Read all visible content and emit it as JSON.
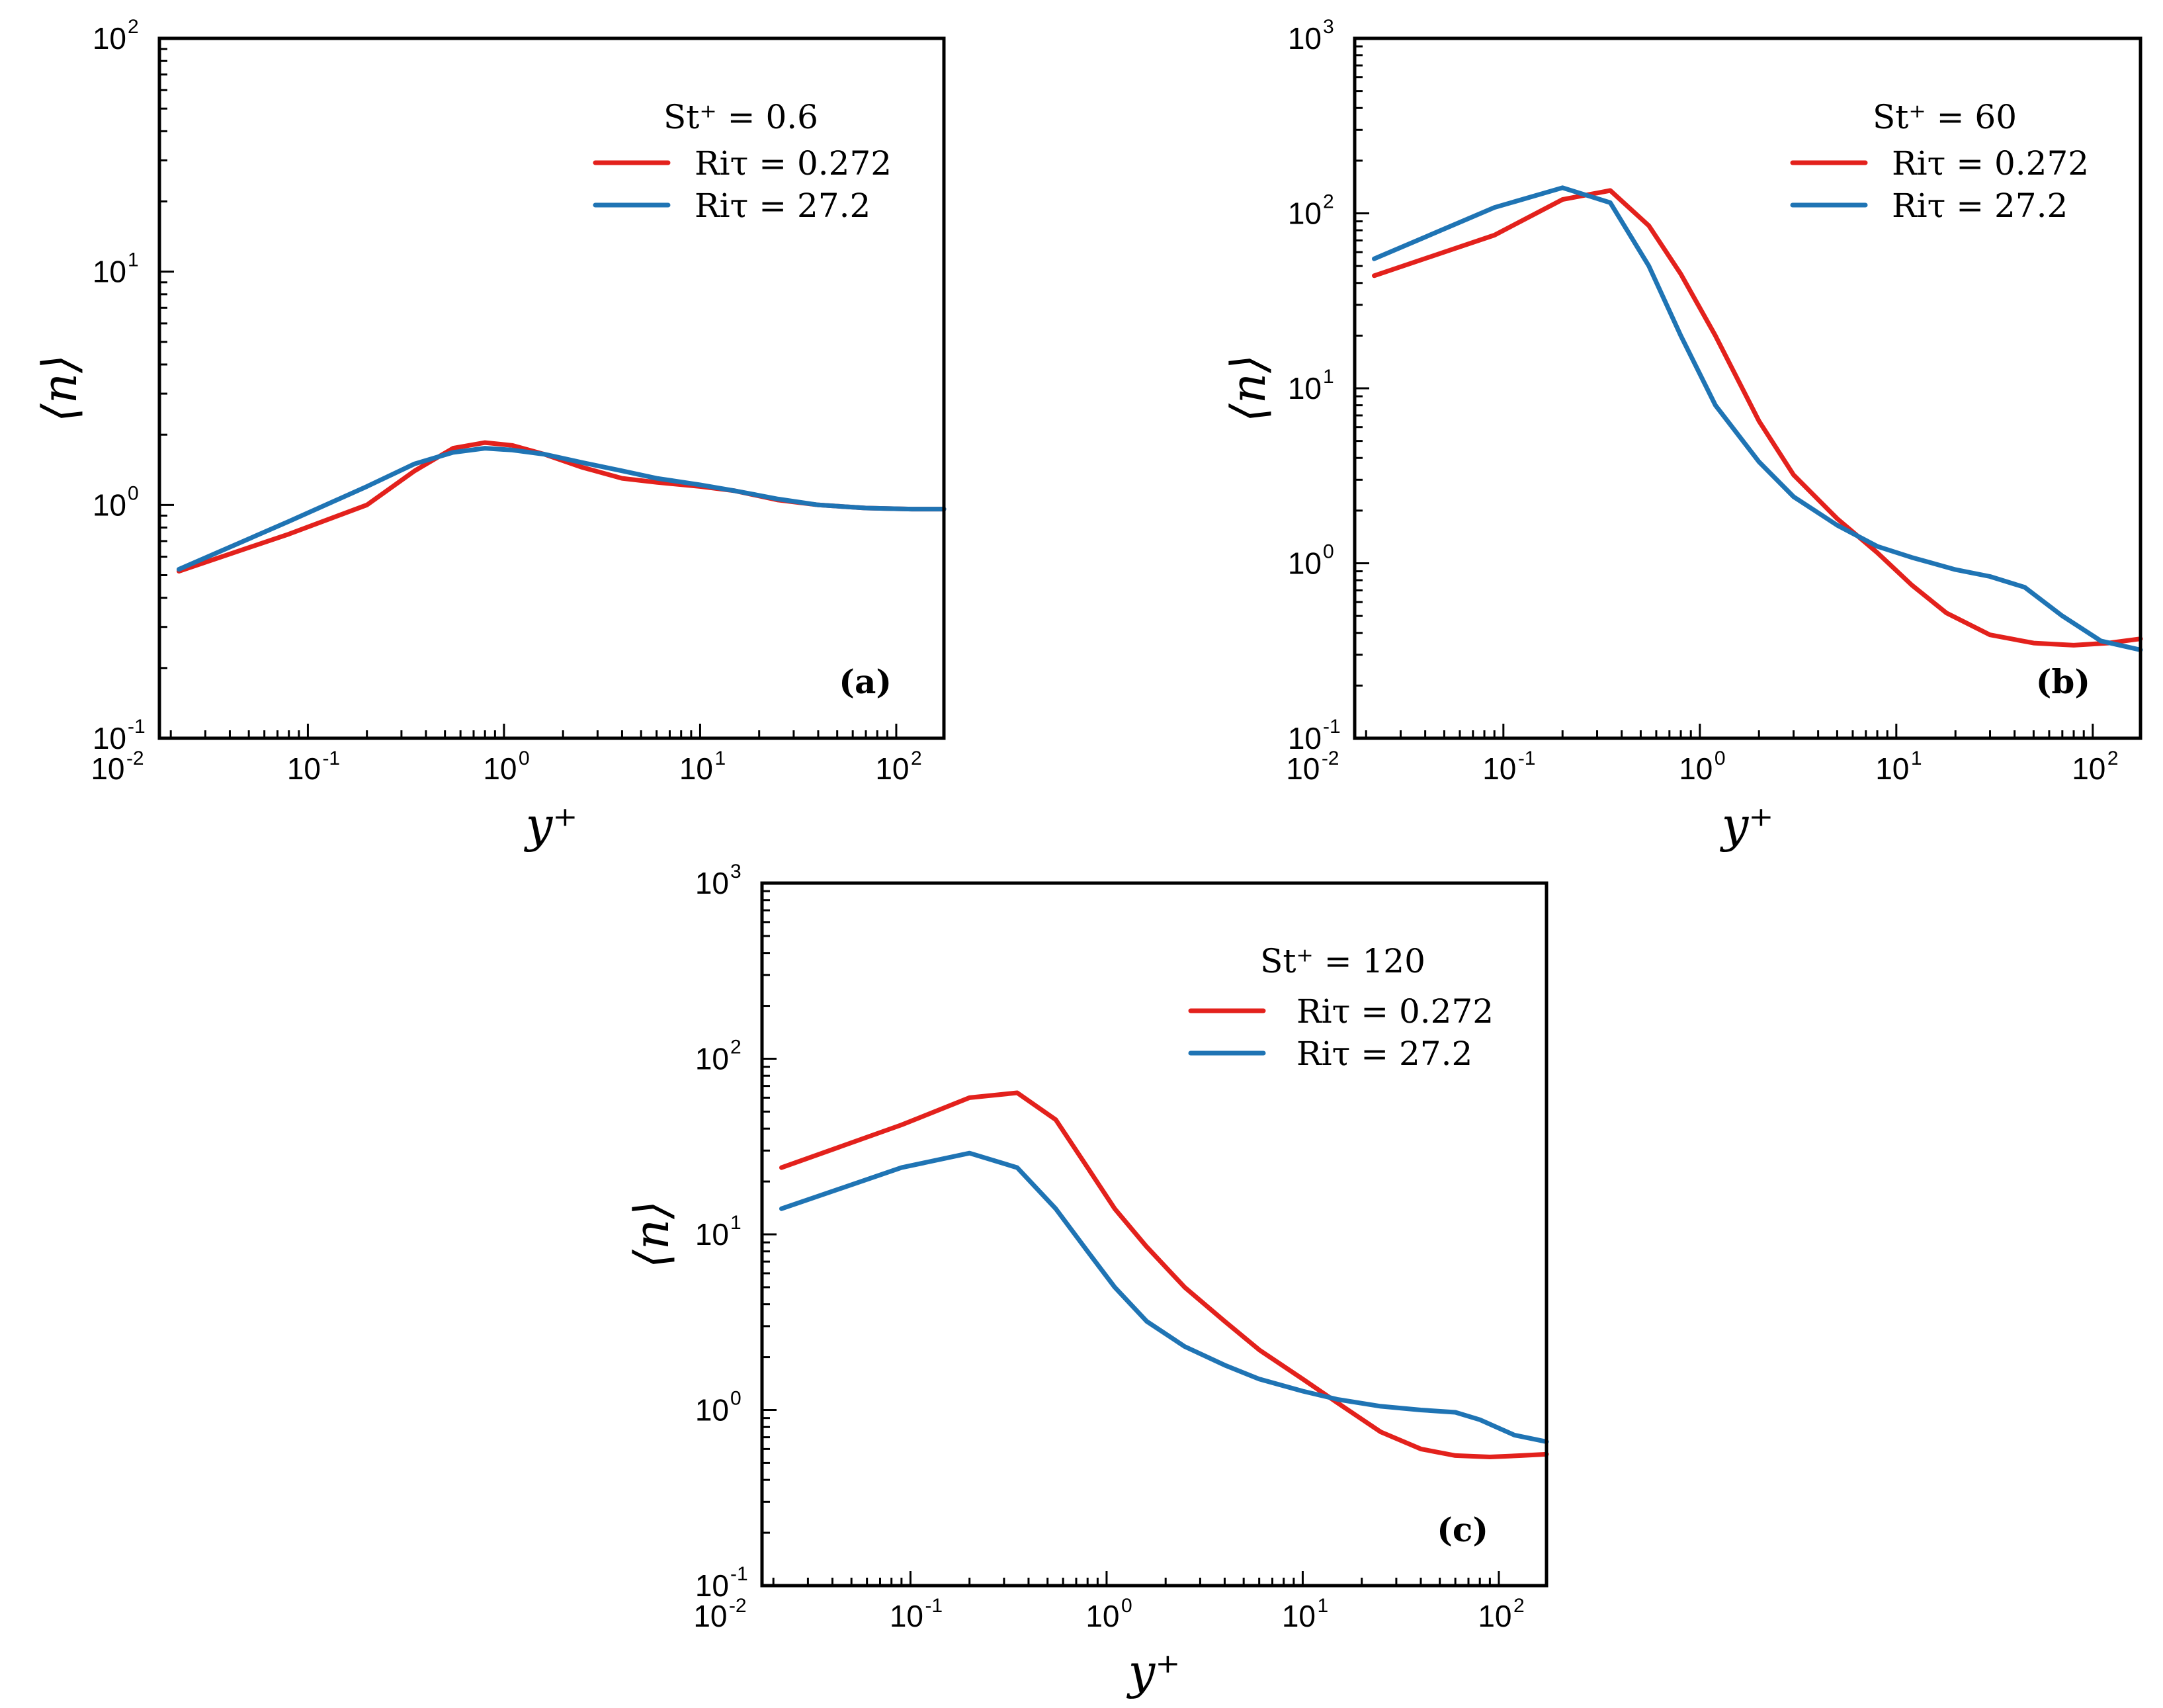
{
  "colors": {
    "red": "#e3211c",
    "blue": "#1f74b4"
  },
  "chart_data": [
    {
      "type": "line",
      "panel_label": "(a)",
      "xlabel": "y⁺",
      "ylabel": "⟨n⟩",
      "xscale": "log",
      "yscale": "log",
      "xlim": [
        0.0175,
        175
      ],
      "ylim": [
        0.1,
        100
      ],
      "xticks": [
        {
          "base": "10",
          "exp": "-2",
          "v": 0.01
        },
        {
          "base": "10",
          "exp": "-1",
          "v": 0.1
        },
        {
          "base": "10",
          "exp": "0",
          "v": 1
        },
        {
          "base": "10",
          "exp": "1",
          "v": 10
        },
        {
          "base": "10",
          "exp": "2",
          "v": 100
        }
      ],
      "yticks": [
        {
          "base": "10",
          "exp": "-1",
          "v": 0.1
        },
        {
          "base": "10",
          "exp": "0",
          "v": 1
        },
        {
          "base": "10",
          "exp": "1",
          "v": 10
        },
        {
          "base": "10",
          "exp": "2",
          "v": 100
        }
      ],
      "legend_title": "St⁺ = 0.6",
      "legend_position": "top-right",
      "series": [
        {
          "name": "Riτ = 0.272",
          "color": "#e3211c",
          "x": [
            0.022,
            0.08,
            0.2,
            0.35,
            0.55,
            0.8,
            1.1,
            1.6,
            2.5,
            4,
            6,
            10,
            15,
            25,
            40,
            70,
            120,
            175
          ],
          "y": [
            0.52,
            0.75,
            1.0,
            1.4,
            1.75,
            1.85,
            1.8,
            1.65,
            1.45,
            1.3,
            1.25,
            1.2,
            1.15,
            1.05,
            1.0,
            0.97,
            0.96,
            0.96
          ]
        },
        {
          "name": "Riτ = 27.2",
          "color": "#1f74b4",
          "x": [
            0.022,
            0.08,
            0.2,
            0.35,
            0.55,
            0.8,
            1.1,
            1.6,
            2.5,
            4,
            6,
            10,
            15,
            25,
            40,
            70,
            120,
            175
          ],
          "y": [
            0.53,
            0.85,
            1.2,
            1.5,
            1.68,
            1.75,
            1.72,
            1.65,
            1.52,
            1.4,
            1.3,
            1.22,
            1.15,
            1.06,
            1.0,
            0.97,
            0.96,
            0.96
          ]
        }
      ]
    },
    {
      "type": "line",
      "panel_label": "(b)",
      "xlabel": "y⁺",
      "ylabel": "⟨n⟩",
      "xscale": "log",
      "yscale": "log",
      "xlim": [
        0.0175,
        175
      ],
      "ylim": [
        0.1,
        1000
      ],
      "xticks": [
        {
          "base": "10",
          "exp": "-2",
          "v": 0.01
        },
        {
          "base": "10",
          "exp": "-1",
          "v": 0.1
        },
        {
          "base": "10",
          "exp": "0",
          "v": 1
        },
        {
          "base": "10",
          "exp": "1",
          "v": 10
        },
        {
          "base": "10",
          "exp": "2",
          "v": 100
        }
      ],
      "yticks": [
        {
          "base": "10",
          "exp": "-1",
          "v": 0.1
        },
        {
          "base": "10",
          "exp": "0",
          "v": 1
        },
        {
          "base": "10",
          "exp": "1",
          "v": 10
        },
        {
          "base": "10",
          "exp": "2",
          "v": 100
        },
        {
          "base": "10",
          "exp": "3",
          "v": 1000
        }
      ],
      "legend_title": "St⁺ = 60",
      "legend_position": "top-right",
      "series": [
        {
          "name": "Riτ = 0.272",
          "color": "#e3211c",
          "x": [
            0.022,
            0.09,
            0.2,
            0.35,
            0.55,
            0.8,
            1.2,
            2,
            3,
            5,
            8,
            12,
            18,
            30,
            50,
            80,
            120,
            175
          ],
          "y": [
            44,
            75,
            120,
            135,
            85,
            45,
            20,
            6.5,
            3.2,
            1.8,
            1.15,
            0.75,
            0.52,
            0.39,
            0.35,
            0.34,
            0.35,
            0.37
          ]
        },
        {
          "name": "Riτ = 27.2",
          "color": "#1f74b4",
          "x": [
            0.022,
            0.09,
            0.2,
            0.35,
            0.55,
            0.8,
            1.2,
            2,
            3,
            5,
            8,
            12,
            20,
            30,
            45,
            70,
            110,
            175
          ],
          "y": [
            55,
            108,
            140,
            115,
            50,
            20,
            8,
            3.8,
            2.4,
            1.65,
            1.25,
            1.08,
            0.92,
            0.84,
            0.73,
            0.5,
            0.36,
            0.32
          ]
        }
      ]
    },
    {
      "type": "line",
      "panel_label": "(c)",
      "xlabel": "y⁺",
      "ylabel": "⟨n⟩",
      "xscale": "log",
      "yscale": "log",
      "xlim": [
        0.0175,
        175
      ],
      "ylim": [
        0.1,
        1000
      ],
      "xticks": [
        {
          "base": "10",
          "exp": "-2",
          "v": 0.01
        },
        {
          "base": "10",
          "exp": "-1",
          "v": 0.1
        },
        {
          "base": "10",
          "exp": "0",
          "v": 1
        },
        {
          "base": "10",
          "exp": "1",
          "v": 10
        },
        {
          "base": "10",
          "exp": "2",
          "v": 100
        }
      ],
      "yticks": [
        {
          "base": "10",
          "exp": "-1",
          "v": 0.1
        },
        {
          "base": "10",
          "exp": "0",
          "v": 1
        },
        {
          "base": "10",
          "exp": "1",
          "v": 10
        },
        {
          "base": "10",
          "exp": "2",
          "v": 100
        },
        {
          "base": "10",
          "exp": "3",
          "v": 1000
        }
      ],
      "legend_title": "St⁺ = 120",
      "legend_position": "top-right",
      "series": [
        {
          "name": "Riτ = 0.272",
          "color": "#e3211c",
          "x": [
            0.022,
            0.09,
            0.2,
            0.35,
            0.55,
            0.8,
            1.1,
            1.6,
            2.5,
            4,
            6,
            10,
            15,
            25,
            40,
            60,
            90,
            130,
            175
          ],
          "y": [
            24,
            42,
            60,
            64,
            45,
            24,
            14,
            8.5,
            5,
            3.2,
            2.2,
            1.5,
            1.1,
            0.75,
            0.6,
            0.55,
            0.54,
            0.55,
            0.56
          ]
        },
        {
          "name": "Riτ = 27.2",
          "color": "#1f74b4",
          "x": [
            0.022,
            0.09,
            0.2,
            0.35,
            0.55,
            0.8,
            1.1,
            1.6,
            2.5,
            4,
            6,
            10,
            15,
            25,
            40,
            60,
            80,
            120,
            175
          ],
          "y": [
            14,
            24,
            29,
            24,
            14,
            8,
            5,
            3.2,
            2.3,
            1.8,
            1.5,
            1.28,
            1.15,
            1.05,
            1.0,
            0.97,
            0.88,
            0.72,
            0.66
          ]
        }
      ]
    }
  ]
}
